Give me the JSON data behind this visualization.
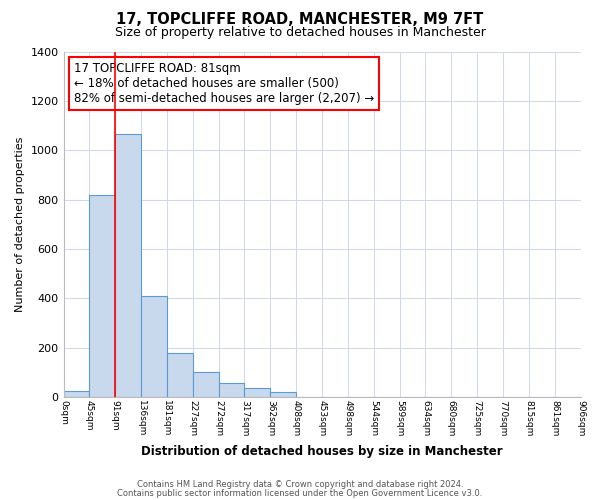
{
  "title": "17, TOPCLIFFE ROAD, MANCHESTER, M9 7FT",
  "subtitle": "Size of property relative to detached houses in Manchester",
  "xlabel": "Distribution of detached houses by size in Manchester",
  "ylabel": "Number of detached properties",
  "bar_color": "#c9d9ed",
  "bar_edge_color": "#5b9bd5",
  "bar_heights": [
    25,
    820,
    1065,
    410,
    180,
    100,
    55,
    35,
    20,
    0,
    0,
    0,
    0,
    0,
    0,
    0,
    0,
    0,
    0,
    0
  ],
  "bin_labels": [
    "0sqm",
    "45sqm",
    "91sqm",
    "136sqm",
    "181sqm",
    "227sqm",
    "272sqm",
    "317sqm",
    "362sqm",
    "408sqm",
    "453sqm",
    "498sqm",
    "544sqm",
    "589sqm",
    "634sqm",
    "680sqm",
    "725sqm",
    "770sqm",
    "815sqm",
    "861sqm",
    "906sqm"
  ],
  "ylim": [
    0,
    1400
  ],
  "yticks": [
    0,
    200,
    400,
    600,
    800,
    1000,
    1200,
    1400
  ],
  "red_line_x": 2.0,
  "annotation_text": "17 TOPCLIFFE ROAD: 81sqm\n← 18% of detached houses are smaller (500)\n82% of semi-detached houses are larger (2,207) →",
  "footnote1": "Contains HM Land Registry data © Crown copyright and database right 2024.",
  "footnote2": "Contains public sector information licensed under the Open Government Licence v3.0.",
  "background_color": "#ffffff",
  "grid_color": "#d0d8e8"
}
